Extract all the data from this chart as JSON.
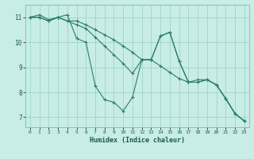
{
  "xlabel": "Humidex (Indice chaleur)",
  "xlim": [
    -0.5,
    23.5
  ],
  "ylim": [
    6.6,
    11.5
  ],
  "yticks": [
    7,
    8,
    9,
    10,
    11
  ],
  "xticks": [
    0,
    1,
    2,
    3,
    4,
    5,
    6,
    7,
    8,
    9,
    10,
    11,
    12,
    13,
    14,
    15,
    16,
    17,
    18,
    19,
    20,
    21,
    22,
    23
  ],
  "bg_color": "#c8ece6",
  "grid_color": "#a0d4cc",
  "line_color": "#2a7d6e",
  "lines": [
    {
      "x": [
        0,
        1,
        2,
        3,
        4,
        5,
        6,
        7,
        8,
        9,
        10,
        11,
        12,
        13,
        14,
        15,
        16,
        17,
        18,
        19,
        20,
        21,
        22,
        23
      ],
      "y": [
        11.0,
        11.1,
        10.9,
        11.0,
        11.1,
        10.15,
        10.0,
        8.25,
        7.7,
        7.6,
        7.25,
        7.8,
        9.3,
        9.3,
        10.25,
        10.4,
        9.25,
        8.4,
        8.4,
        8.5,
        8.3,
        7.75,
        7.15,
        6.85
      ]
    },
    {
      "x": [
        0,
        1,
        2,
        3,
        4,
        5,
        6,
        7,
        8,
        9,
        10,
        11,
        12,
        13,
        14,
        15,
        16,
        17,
        18,
        19,
        20,
        21,
        22,
        23
      ],
      "y": [
        11.0,
        11.0,
        10.85,
        11.0,
        10.85,
        10.85,
        10.7,
        10.5,
        10.3,
        10.1,
        9.85,
        9.6,
        9.3,
        9.3,
        9.05,
        8.8,
        8.55,
        8.4,
        8.4,
        8.5,
        8.3,
        7.75,
        7.15,
        6.85
      ]
    },
    {
      "x": [
        0,
        1,
        2,
        3,
        4,
        5,
        6,
        7,
        8,
        9,
        10,
        11,
        12,
        13,
        14,
        15,
        16,
        17,
        18,
        19,
        20,
        21,
        22,
        23
      ],
      "y": [
        11.0,
        11.0,
        10.85,
        11.0,
        10.85,
        10.7,
        10.55,
        10.2,
        9.85,
        9.5,
        9.15,
        8.75,
        9.3,
        9.3,
        10.25,
        10.4,
        9.25,
        8.4,
        8.5,
        8.5,
        8.3,
        7.75,
        7.15,
        6.85
      ]
    }
  ]
}
